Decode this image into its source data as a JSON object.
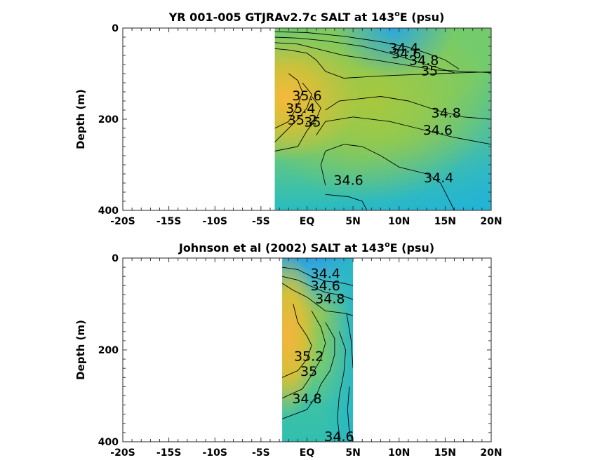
{
  "chart_data": [
    {
      "type": "heatmap",
      "title_prefix": "YR 001-005 GTJRAv2.7c SALT at 143",
      "title_sup": "o",
      "title_suffix": "E (psu)",
      "ylabel": "Depth (m)",
      "xlim": [
        -20,
        20
      ],
      "ylim": [
        0,
        400
      ],
      "y_reversed": true,
      "x_ticks": [
        -20,
        -15,
        -10,
        -5,
        0,
        5,
        10,
        15,
        20
      ],
      "x_tick_labels": [
        "-20S",
        "-15S",
        "-10S",
        "-5S",
        "EQ",
        "5N",
        "10N",
        "15N",
        "20N"
      ],
      "y_ticks": [
        0,
        200,
        400
      ],
      "y_tick_labels": [
        "0",
        "200",
        "400"
      ],
      "data_x_range": [
        -3.5,
        20
      ],
      "contour_labels": [
        {
          "text": "34.4",
          "x": 10.5,
          "y": 45
        },
        {
          "text": "34.6",
          "x": 10.8,
          "y": 58
        },
        {
          "text": "34.8",
          "x": 12.7,
          "y": 72
        },
        {
          "text": "35",
          "x": 13.3,
          "y": 95
        },
        {
          "text": "35.6",
          "x": 0,
          "y": 150
        },
        {
          "text": "35.4",
          "x": -0.7,
          "y": 178
        },
        {
          "text": "35.2",
          "x": -0.5,
          "y": 203
        },
        {
          "text": "35",
          "x": 0.6,
          "y": 208
        },
        {
          "text": "34.8",
          "x": 15.1,
          "y": 188
        },
        {
          "text": "34.6",
          "x": 14.2,
          "y": 225
        },
        {
          "text": "34.6",
          "x": 4.5,
          "y": 335
        },
        {
          "text": "34.4",
          "x": 14.3,
          "y": 330
        }
      ]
    },
    {
      "type": "heatmap",
      "title_prefix": "Johnson et al (2002) SALT at 143",
      "title_sup": "o",
      "title_suffix": "E (psu)",
      "ylabel": "Depth (m)",
      "xlim": [
        -20,
        20
      ],
      "ylim": [
        0,
        400
      ],
      "y_reversed": true,
      "x_ticks": [
        -20,
        -15,
        -10,
        -5,
        0,
        5,
        10,
        15,
        20
      ],
      "x_tick_labels": [
        "-20S",
        "-15S",
        "-10S",
        "-5S",
        "EQ",
        "5N",
        "10N",
        "15N",
        "20N"
      ],
      "y_ticks": [
        0,
        200,
        400
      ],
      "y_tick_labels": [
        "0",
        "200",
        "400"
      ],
      "data_x_range": [
        -2.7,
        5
      ],
      "contour_labels": [
        {
          "text": "34.4",
          "x": 2,
          "y": 35
        },
        {
          "text": "34.6",
          "x": 2,
          "y": 62
        },
        {
          "text": "34.8",
          "x": 2.5,
          "y": 90
        },
        {
          "text": "35.2",
          "x": 0.2,
          "y": 215
        },
        {
          "text": "35",
          "x": 0.2,
          "y": 248
        },
        {
          "text": "34.8",
          "x": 0.0,
          "y": 308
        },
        {
          "text": "34.6",
          "x": 3.5,
          "y": 390
        }
      ]
    }
  ]
}
